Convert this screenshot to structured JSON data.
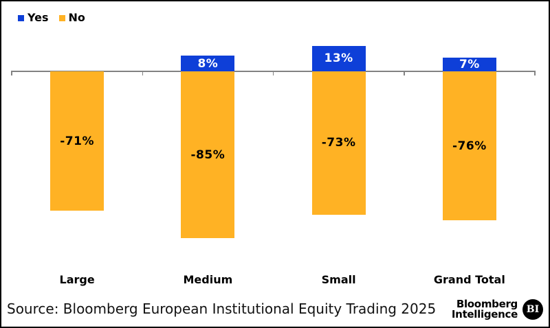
{
  "legend": {
    "position": "top-left",
    "items": [
      {
        "label": "Yes",
        "color": "#0e3fd8"
      },
      {
        "label": "No",
        "color": "#ffb224"
      }
    ]
  },
  "chart_data": {
    "type": "bar",
    "stacked": true,
    "orientation": "vertical",
    "title": "",
    "xlabel": "",
    "ylabel": "",
    "grid": false,
    "legend_position": "top-left",
    "ylim": [
      -100,
      20
    ],
    "baseline_value": 0,
    "axis_color": "#828282",
    "categories": [
      "Large",
      "Medium",
      "Small",
      "Grand Total"
    ],
    "series": [
      {
        "name": "Yes",
        "color": "#0e3fd8",
        "label_color": "#ffffff",
        "values": [
          0,
          8,
          13,
          7
        ],
        "labels": [
          "",
          "8%",
          "13%",
          "7%"
        ]
      },
      {
        "name": "No",
        "color": "#ffb224",
        "label_color": "#000000",
        "values": [
          -71,
          -85,
          -73,
          -76
        ],
        "labels": [
          "-71%",
          "-85%",
          "-73%",
          "-76%"
        ]
      }
    ]
  },
  "footer": {
    "source": "Source: Bloomberg European Institutional Equity Trading 2025",
    "brand_line1": "Bloomberg",
    "brand_line2": "Intelligence",
    "brand_badge": "BI"
  }
}
